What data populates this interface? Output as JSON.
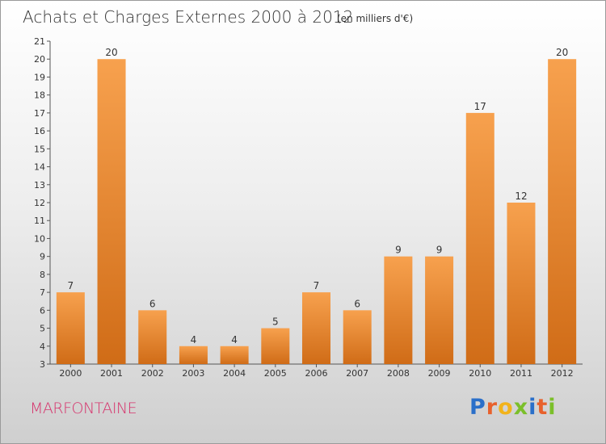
{
  "chart_data": {
    "type": "bar",
    "title": "Achats et Charges Externes 2000 à 2012",
    "subtitle": "(en milliers d'€)",
    "categories": [
      "2000",
      "2001",
      "2002",
      "2003",
      "2004",
      "2005",
      "2006",
      "2007",
      "2008",
      "2009",
      "2010",
      "2011",
      "2012"
    ],
    "values": [
      7,
      20,
      6,
      4,
      4,
      5,
      7,
      6,
      9,
      9,
      17,
      12,
      20
    ],
    "xlabel": "",
    "ylabel": "",
    "ylim": [
      3,
      21
    ],
    "yticks": [
      "3",
      "4",
      "5",
      "6",
      "7",
      "8",
      "9",
      "10",
      "11",
      "12",
      "13",
      "14",
      "15",
      "16",
      "17",
      "18",
      "19",
      "20",
      "21"
    ],
    "grid": false,
    "bar_color_top": "#f7a14e",
    "bar_color_bottom": "#d06c17"
  },
  "footer": {
    "commune": "MARFONTAINE",
    "logo_letters": [
      "P",
      "r",
      "o",
      "x",
      "i",
      "t",
      "i"
    ],
    "logo_colors": [
      "#2a6fc9",
      "#e8612c",
      "#f2b31b",
      "#7bbf2a",
      "#2a6fc9",
      "#e8612c",
      "#7bbf2a"
    ]
  }
}
